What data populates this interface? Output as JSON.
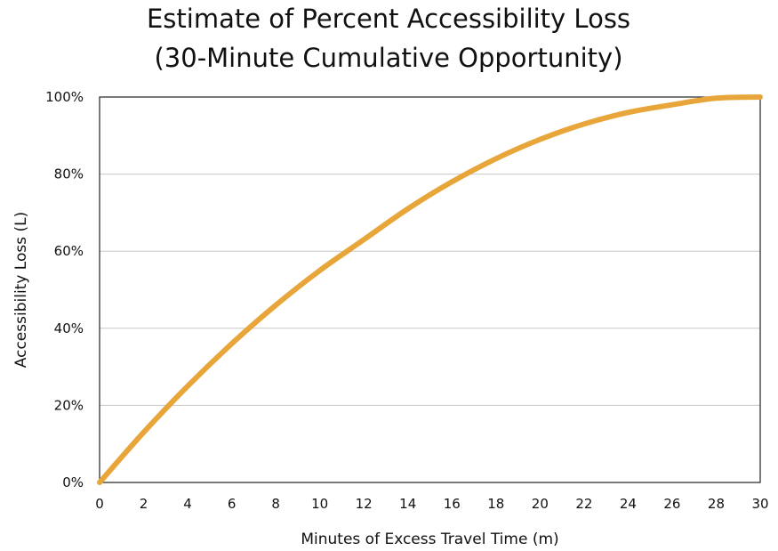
{
  "chart_data": {
    "type": "line",
    "title_lines": [
      "Estimate of Percent Accessibility Loss",
      "(30-Minute Cumulative Opportunity)"
    ],
    "xlabel": "Minutes of Excess Travel Time (m)",
    "ylabel": "Accessibility Loss (L)",
    "xlim": [
      0,
      30
    ],
    "ylim": [
      0,
      100
    ],
    "x_ticks": [
      0,
      2,
      4,
      6,
      8,
      10,
      12,
      14,
      16,
      18,
      20,
      22,
      24,
      26,
      28,
      30
    ],
    "y_ticks": [
      0,
      20,
      40,
      60,
      80,
      100
    ],
    "y_tick_labels": [
      "0%",
      "20%",
      "40%",
      "60%",
      "80%",
      "100%"
    ],
    "grid": "horizontal",
    "series": [
      {
        "color": "#E8A63A",
        "x": [
          0,
          2,
          4,
          6,
          8,
          10,
          12,
          14,
          16,
          18,
          20,
          22,
          24,
          26,
          28,
          30
        ],
        "y": [
          0,
          13,
          25,
          36,
          46,
          55,
          63,
          71,
          78,
          84,
          89,
          93,
          96,
          98,
          99.7,
          100
        ]
      }
    ]
  }
}
